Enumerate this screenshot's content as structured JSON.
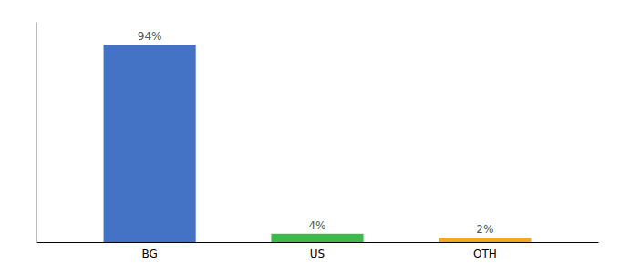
{
  "chart_data": {
    "type": "bar",
    "categories": [
      "BG",
      "US",
      "OTH"
    ],
    "values": [
      94,
      4,
      2
    ],
    "value_labels": [
      "94%",
      "4%",
      "2%"
    ],
    "colors": [
      "#4472c4",
      "#3dba4e",
      "#f5a623"
    ],
    "ylim": [
      0,
      105
    ],
    "data_labels": true,
    "tick_labels": "x"
  }
}
